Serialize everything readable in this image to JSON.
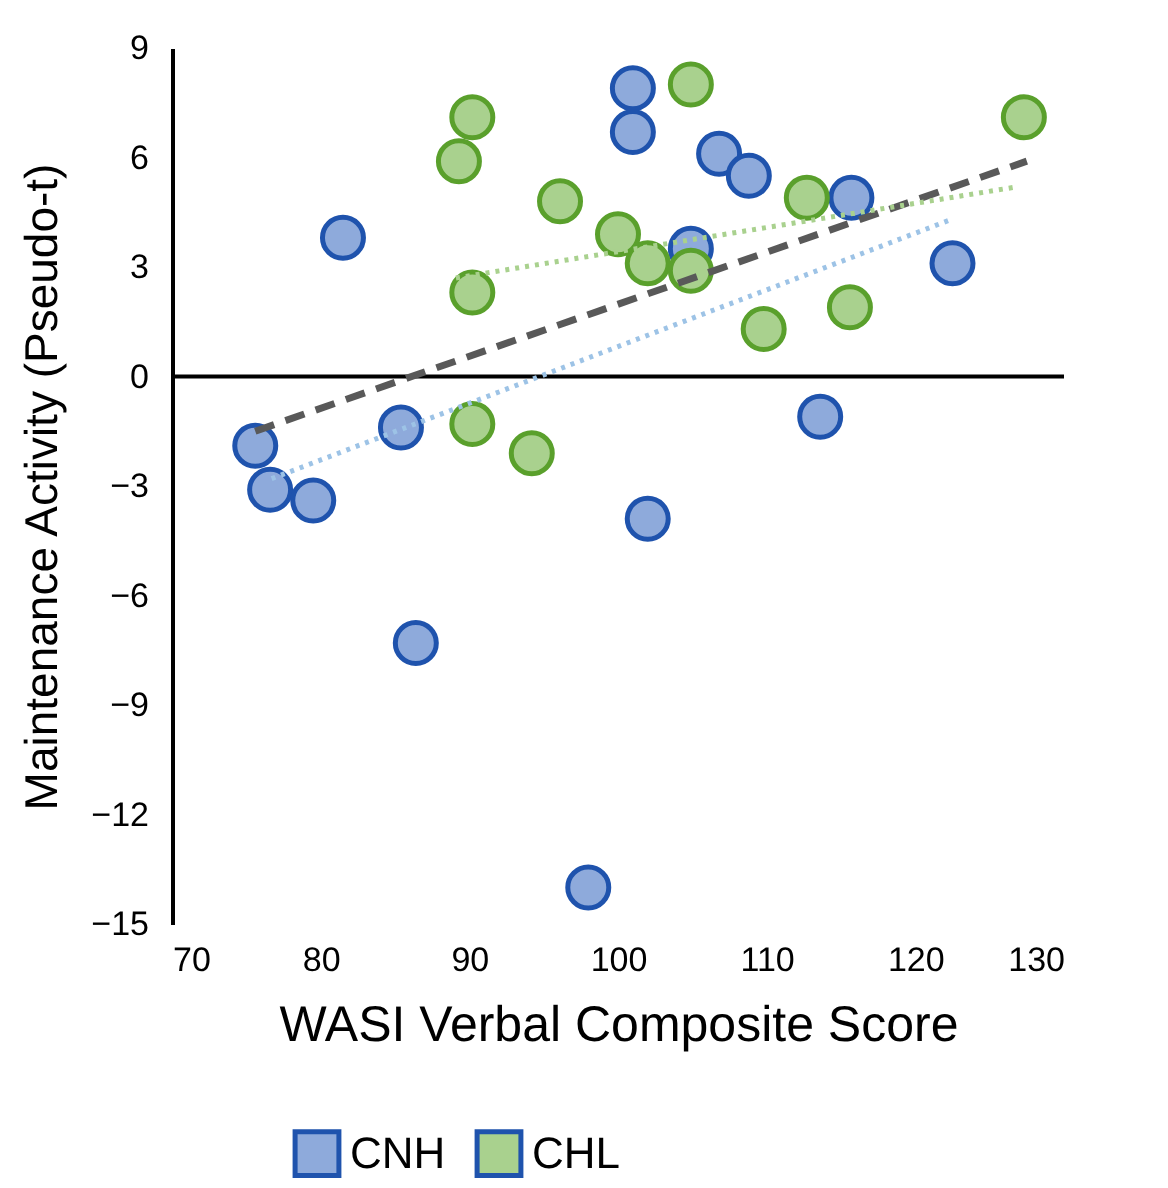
{
  "chart_data": {
    "type": "scatter",
    "xlabel": "WASI Verbal  Composite  Score",
    "ylabel": "Maintenance Activity (Pseudo-t)",
    "xlim": [
      70,
      130
    ],
    "xticks": [
      70,
      80,
      90,
      100,
      110,
      120,
      130
    ],
    "ylim": [
      -15,
      9
    ],
    "yticks": [
      -15,
      -12,
      -9,
      -6,
      -3,
      0,
      3,
      6,
      9
    ],
    "grid": false,
    "legend": "bottom",
    "marker": "circle",
    "ref_lines": [
      {
        "axis": "y",
        "value": 0,
        "color": "#000000"
      }
    ],
    "series": [
      {
        "name": "CNH",
        "color": "#8eaadb",
        "x": [
          75.6,
          76.6,
          79.5,
          81.5,
          85.4,
          86.4,
          98,
          102,
          101,
          101,
          104.9,
          106.8,
          108.8,
          113.6,
          115.7,
          122.5
        ],
        "values": [
          -1.9,
          -3.1,
          -3.4,
          3.8,
          -1.4,
          -7.3,
          -14,
          -3.9,
          7.9,
          6.7,
          3.5,
          6.1,
          5.5,
          -1.1,
          4.9,
          3.1
        ]
      },
      {
        "name": "CHL",
        "color": "#a9d18e",
        "x": [
          90.2,
          89.3,
          90.2,
          90.2,
          94.2,
          96.1,
          100,
          102,
          104.9,
          104.9,
          109.8,
          112.7,
          115.6,
          127.3
        ],
        "values": [
          7.1,
          5.9,
          2.3,
          -1.3,
          -2.1,
          4.8,
          3.9,
          3.1,
          2.9,
          8,
          1.3,
          4.9,
          1.9,
          7.1
        ]
      },
      {
        "type": "line",
        "color": "#595959",
        "line_style": "dashed",
        "marker": "none",
        "x": [
          75.6,
          127.5
        ],
        "values": [
          -1.5,
          5.9
        ]
      },
      {
        "type": "line",
        "color": "#a9d18e",
        "line_style": "dotted",
        "marker": "none",
        "x": [
          89.1,
          126.9
        ],
        "values": [
          2.7,
          5.2
        ]
      },
      {
        "type": "line",
        "color": "#9dc3e6",
        "line_style": "dotted",
        "marker": "none",
        "x": [
          76.7,
          122.4
        ],
        "values": [
          -2.8,
          4.3
        ]
      }
    ]
  }
}
